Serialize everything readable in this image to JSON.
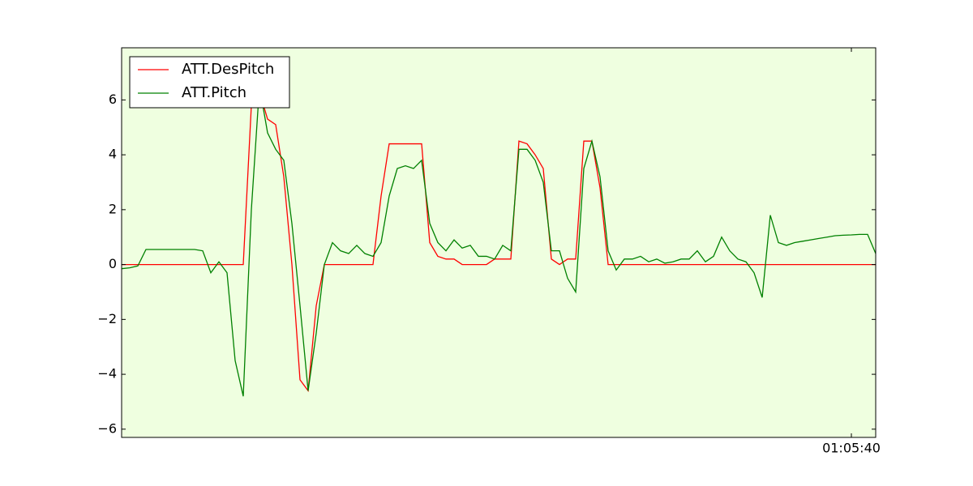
{
  "chart_data": {
    "type": "line",
    "x": [
      0,
      1,
      2,
      3,
      4,
      5,
      6,
      7,
      8,
      9,
      10,
      11,
      12,
      13,
      14,
      15,
      16,
      17,
      18,
      19,
      20,
      21,
      22,
      23,
      24,
      25,
      26,
      27,
      28,
      29,
      30,
      31,
      32,
      33,
      34,
      35,
      36,
      37,
      38,
      39,
      40,
      41,
      42,
      43,
      44,
      45,
      46,
      47,
      48,
      49,
      50,
      51,
      52,
      53,
      54,
      55,
      56,
      57,
      58,
      59,
      60,
      61,
      62,
      63,
      64,
      65,
      66,
      67,
      68,
      69,
      70,
      71,
      72,
      73,
      74,
      75,
      76,
      77,
      78,
      79,
      80,
      81,
      82,
      83,
      84,
      85,
      86,
      87,
      88,
      89,
      90,
      91,
      92,
      93
    ],
    "series": [
      {
        "name": "ATT.DesPitch",
        "color": "#ff0000",
        "values": [
          0,
          0,
          0,
          0,
          0,
          0,
          0,
          0,
          0,
          0,
          0,
          0,
          0,
          0,
          0,
          0,
          5.8,
          6.3,
          5.3,
          5.1,
          3.2,
          0,
          -4.2,
          -4.6,
          -1.5,
          0,
          0,
          0,
          0,
          0,
          0,
          0,
          2.5,
          4.4,
          4.4,
          4.4,
          4.4,
          4.4,
          0.8,
          0.3,
          0.2,
          0.2,
          0,
          0,
          0,
          0,
          0.2,
          0.2,
          0.2,
          4.5,
          4.4,
          4.0,
          3.5,
          0.2,
          0,
          0.2,
          0.2,
          4.5,
          4.5,
          2.8,
          0,
          0,
          0,
          0,
          0,
          0,
          0,
          0,
          0,
          0,
          0,
          0,
          0,
          0,
          0,
          0,
          0,
          0,
          0,
          0,
          0,
          0,
          0,
          0,
          0,
          0,
          0,
          0,
          0,
          0,
          0,
          0,
          0,
          0
        ]
      },
      {
        "name": "ATT.Pitch",
        "color": "#008000",
        "values": [
          -0.15,
          -0.12,
          -0.05,
          0.55,
          0.55,
          0.55,
          0.55,
          0.55,
          0.55,
          0.55,
          0.5,
          -0.3,
          0.1,
          -0.3,
          -3.5,
          -4.8,
          2,
          6.5,
          4.8,
          4.2,
          3.8,
          1.5,
          -1.5,
          -4.6,
          -2.5,
          0,
          0.8,
          0.5,
          0.4,
          0.7,
          0.4,
          0.3,
          0.8,
          2.5,
          3.5,
          3.6,
          3.5,
          3.8,
          1.5,
          0.8,
          0.5,
          0.9,
          0.6,
          0.7,
          0.3,
          0.3,
          0.2,
          0.7,
          0.5,
          4.2,
          4.2,
          3.8,
          3.0,
          0.5,
          0.5,
          -0.5,
          -1.0,
          3.5,
          4.5,
          3.2,
          0.5,
          -0.2,
          0.2,
          0.2,
          0.3,
          0.1,
          0.2,
          0.05,
          0.1,
          0.2,
          0.2,
          0.5,
          0.1,
          0.3,
          1.0,
          0.5,
          0.2,
          0.1,
          -0.3,
          -1.2,
          1.8,
          0.8,
          0.7,
          0.8,
          0.85,
          0.9,
          0.95,
          1.0,
          1.05,
          1.07,
          1.08,
          1.1,
          1.1,
          0.4
        ]
      }
    ],
    "xlim": [
      0,
      93
    ],
    "xticks": [
      {
        "value": 90,
        "label": "01:05:40"
      }
    ],
    "ylim": [
      -6.3,
      7.9
    ],
    "yticks": [
      {
        "value": -6,
        "label": "−6"
      },
      {
        "value": -4,
        "label": "−4"
      },
      {
        "value": -2,
        "label": "−2"
      },
      0,
      2,
      4,
      6
    ],
    "grid": false,
    "legend": "upper left",
    "background": "#efffe0"
  }
}
